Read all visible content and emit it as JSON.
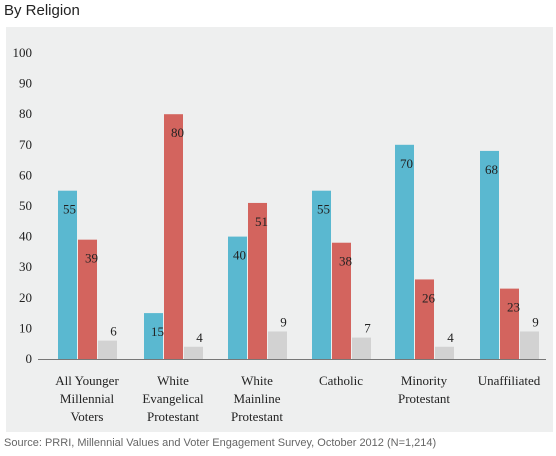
{
  "header": {
    "title": "By Religion"
  },
  "footer": {
    "source": "Source: PRRI, Millennial Values and Voter Engagement Survey, October 2012 (N=1,214)"
  },
  "chart_data": {
    "type": "bar",
    "title": "By Religion",
    "ylim": [
      0,
      100
    ],
    "yticks": [
      0,
      10,
      20,
      30,
      40,
      50,
      60,
      70,
      80,
      90,
      100
    ],
    "grid": false,
    "legend": "none",
    "categories": [
      [
        "All Younger",
        "Millennial",
        "Voters"
      ],
      [
        "White",
        "Evangelical",
        "Protestant"
      ],
      [
        "White",
        "Mainline",
        "Protestant"
      ],
      [
        "Catholic"
      ],
      [
        "Minority",
        "Protestant"
      ],
      [
        "Unaffiliated"
      ]
    ],
    "series": [
      {
        "color": "#5ab8d0",
        "values": [
          55,
          15,
          40,
          55,
          70,
          68
        ]
      },
      {
        "color": "#d3645e",
        "values": [
          39,
          80,
          51,
          38,
          26,
          23
        ]
      },
      {
        "color": "#d2d2d2",
        "values": [
          6,
          4,
          9,
          7,
          4,
          9
        ]
      }
    ]
  }
}
